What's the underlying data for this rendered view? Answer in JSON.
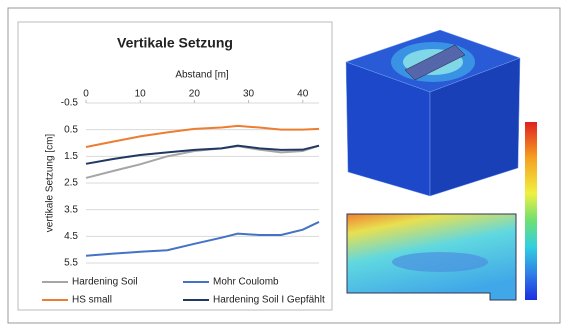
{
  "chart_data": {
    "type": "line",
    "title": "Vertikale Setzung",
    "x_label": "Abstand [m]",
    "y_label": "vertikale Setzung [cm]",
    "x": [
      0,
      5,
      10,
      15,
      20,
      25,
      28,
      32,
      36,
      40,
      43
    ],
    "series": [
      {
        "name": "Hardening Soil",
        "color": "#a6a6a6",
        "values": [
          2.31,
          2.05,
          1.8,
          1.5,
          1.3,
          1.2,
          1.12,
          1.25,
          1.35,
          1.3,
          1.1
        ]
      },
      {
        "name": "Mohr Coulomb",
        "color": "#4472c4",
        "values": [
          5.23,
          5.15,
          5.08,
          5.02,
          4.78,
          4.55,
          4.4,
          4.45,
          4.45,
          4.25,
          3.96
        ]
      },
      {
        "name": "HS small",
        "color": "#ed7d31",
        "values": [
          1.15,
          0.95,
          0.75,
          0.6,
          0.47,
          0.42,
          0.36,
          0.42,
          0.5,
          0.5,
          0.47
        ]
      },
      {
        "name": "Hardening Soil I Gepfählt",
        "color": "#1f3864",
        "values": [
          1.78,
          1.6,
          1.45,
          1.35,
          1.26,
          1.2,
          1.1,
          1.2,
          1.26,
          1.25,
          1.1
        ]
      }
    ],
    "xlim": [
      0,
      43
    ],
    "xticks": [
      0,
      10,
      20,
      30,
      40
    ],
    "ylim": [
      -0.5,
      5.5
    ],
    "yticks": [
      -0.5,
      0.5,
      1.5,
      2.5,
      3.5,
      4.5,
      5.5
    ],
    "y_reversed": true,
    "grid": true,
    "legend": "bottom"
  }
}
